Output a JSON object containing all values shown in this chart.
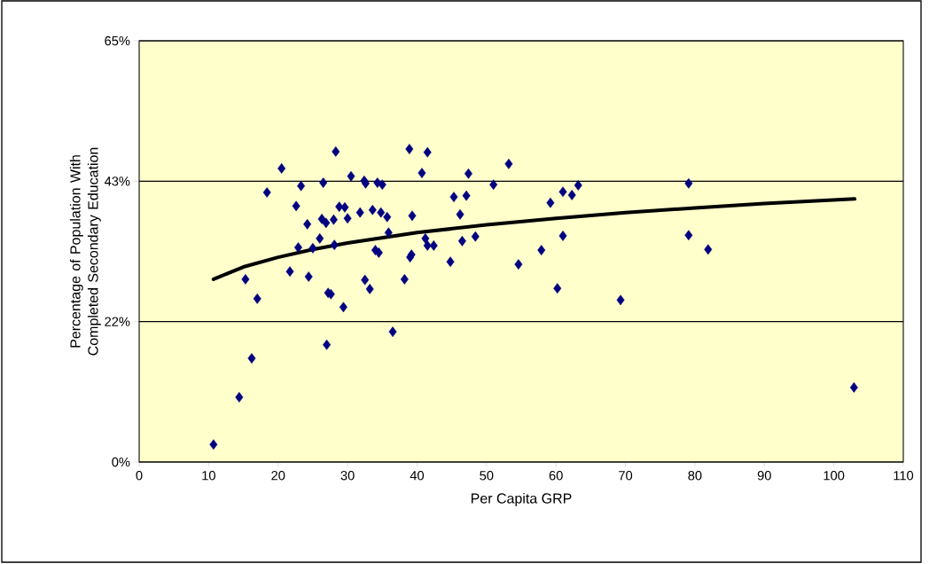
{
  "chart_data": {
    "type": "scatter",
    "xlabel": "Per Capita GRP",
    "ylabel": "Percentage of Population With Completed Secondary Education",
    "xlim": [
      0,
      110
    ],
    "xticks": [
      0,
      10,
      20,
      30,
      40,
      50,
      60,
      70,
      80,
      90,
      100,
      110
    ],
    "ylim": [
      0,
      65
    ],
    "yticks": [
      {
        "value": 0,
        "label": "0%"
      },
      {
        "value": 21.67,
        "label": "22%"
      },
      {
        "value": 43.33,
        "label": "43%"
      },
      {
        "value": 65,
        "label": "65%"
      }
    ],
    "grid": "y",
    "series": [
      {
        "marker": "diamond",
        "color": "#000080",
        "x": [
          10.7,
          14.4,
          16.2,
          17.0,
          15.3,
          18.4,
          20.5,
          21.7,
          22.6,
          22.9,
          23.3,
          24.2,
          24.4,
          25.0,
          26.0,
          26.3,
          26.5,
          26.9,
          27.0,
          27.2,
          27.6,
          28.0,
          28.1,
          28.3,
          28.8,
          29.4,
          29.6,
          30.0,
          30.5,
          31.8,
          32.4,
          32.6,
          32.5,
          33.2,
          33.6,
          34.3,
          35.0,
          34.0,
          34.5,
          34.8,
          35.7,
          35.9,
          36.5,
          38.2,
          38.9,
          39.0,
          39.2,
          39.3,
          40.7,
          41.2,
          41.5,
          41.5,
          42.4,
          44.8,
          45.3,
          46.2,
          46.5,
          47.1,
          47.4,
          48.4,
          51.0,
          53.2,
          54.6,
          57.9,
          59.2,
          60.2,
          61.0,
          61.0,
          62.3,
          63.2,
          69.3,
          79.1,
          79.1,
          81.9,
          102.9
        ],
        "values": [
          2.7,
          10.0,
          16.0,
          25.2,
          28.2,
          41.6,
          45.3,
          29.4,
          39.5,
          33.1,
          42.6,
          36.7,
          28.6,
          33.0,
          34.5,
          37.5,
          43.1,
          36.9,
          18.1,
          26.1,
          25.9,
          37.4,
          33.5,
          47.9,
          39.4,
          23.9,
          39.3,
          37.6,
          44.1,
          38.5,
          43.4,
          43.0,
          28.1,
          26.7,
          38.9,
          43.1,
          42.8,
          32.7,
          32.3,
          38.5,
          37.8,
          35.4,
          20.1,
          28.2,
          48.3,
          31.6,
          32.0,
          38.0,
          44.6,
          34.5,
          47.8,
          33.4,
          33.4,
          30.9,
          40.9,
          38.2,
          34.1,
          41.1,
          44.5,
          34.8,
          42.8,
          46.0,
          30.5,
          32.7,
          40.0,
          26.8,
          41.7,
          34.9,
          41.2,
          42.7,
          25.0,
          43.0,
          35.0,
          32.8,
          11.5
        ]
      },
      {
        "type": "line",
        "marker": "none",
        "color": "#000000",
        "x": [
          10.7,
          15,
          20,
          25,
          30,
          40,
          50,
          60,
          70,
          80,
          90,
          103
        ],
        "values": [
          28.2,
          30.1,
          31.6,
          32.8,
          33.8,
          35.4,
          36.6,
          37.6,
          38.5,
          39.2,
          39.9,
          40.6
        ]
      }
    ]
  }
}
